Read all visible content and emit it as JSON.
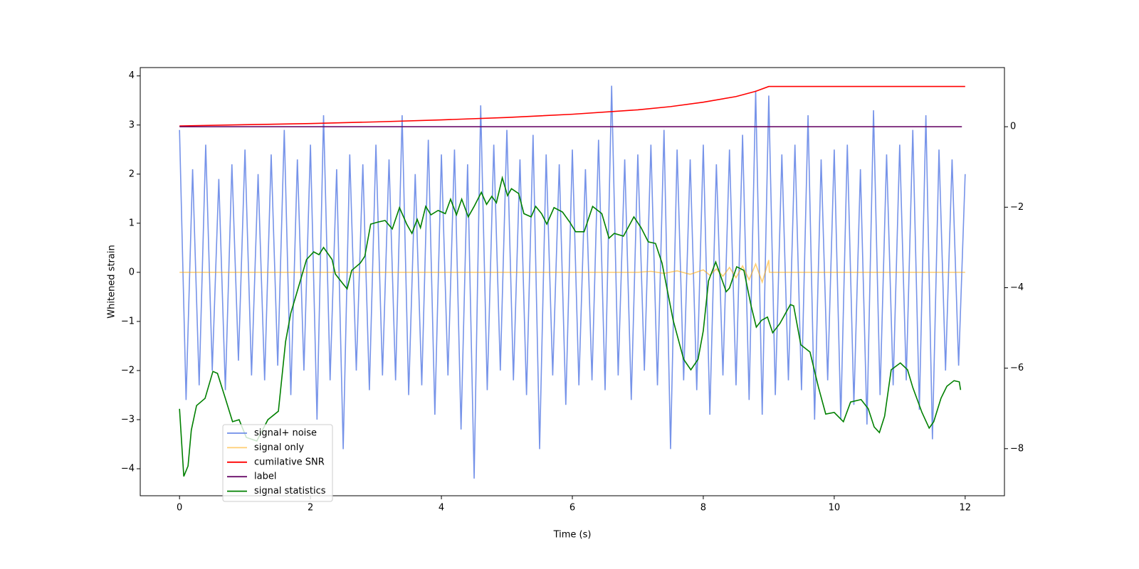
{
  "chart_data": {
    "type": "line",
    "xlabel": "Time (s)",
    "ylabel": "Whitened strain",
    "xlim": [
      -0.6,
      12.6
    ],
    "ylim": [
      -4.55,
      4.17
    ],
    "y2lim": [
      -9.17,
      1.47
    ],
    "xticks": [
      0,
      2,
      4,
      6,
      8,
      10,
      12
    ],
    "yticks": [
      {
        "value": -4,
        "label": "−4"
      },
      {
        "value": -3,
        "label": "−3"
      },
      {
        "value": -2,
        "label": "−2"
      },
      {
        "value": -1,
        "label": "−1"
      },
      0,
      1,
      2,
      3,
      4
    ],
    "y2ticks": [
      {
        "value": -8,
        "label": "−8"
      },
      {
        "value": -6,
        "label": "−6"
      },
      {
        "value": -4,
        "label": "−4"
      },
      {
        "value": -2,
        "label": "−2"
      },
      0
    ],
    "legend": "lower left",
    "series": [
      {
        "name": "signal+ noise",
        "color": "#6f8de8",
        "x": [
          0,
          0.1,
          0.2,
          0.3,
          0.4,
          0.5,
          0.6,
          0.7,
          0.8,
          0.9,
          1,
          1.1,
          1.2,
          1.3,
          1.4,
          1.5,
          1.6,
          1.7,
          1.8,
          1.9,
          2,
          2.1,
          2.2,
          2.3,
          2.4,
          2.5,
          2.6,
          2.7,
          2.8,
          2.9,
          3,
          3.1,
          3.2,
          3.3,
          3.4,
          3.5,
          3.6,
          3.7,
          3.8,
          3.9,
          4,
          4.1,
          4.2,
          4.3,
          4.4,
          4.5,
          4.6,
          4.7,
          4.8,
          4.9,
          5,
          5.1,
          5.2,
          5.3,
          5.4,
          5.5,
          5.6,
          5.7,
          5.8,
          5.9,
          6,
          6.1,
          6.2,
          6.3,
          6.4,
          6.5,
          6.6,
          6.7,
          6.8,
          6.9,
          7,
          7.1,
          7.2,
          7.3,
          7.4,
          7.5,
          7.6,
          7.7,
          7.8,
          7.9,
          8,
          8.1,
          8.2,
          8.3,
          8.4,
          8.5,
          8.6,
          8.7,
          8.8,
          8.9,
          9,
          9.1,
          9.2,
          9.3,
          9.4,
          9.5,
          9.6,
          9.7,
          9.8,
          9.9,
          10,
          10.1,
          10.2,
          10.3,
          10.4,
          10.5,
          10.6,
          10.7,
          10.8,
          10.9,
          11,
          11.1,
          11.2,
          11.3,
          11.4,
          11.5,
          11.6,
          11.7,
          11.8,
          11.9,
          12
        ],
        "values": [
          2.9,
          -2.6,
          2.1,
          -2.3,
          2.6,
          -2.0,
          1.9,
          -2.4,
          2.2,
          -1.8,
          2.5,
          -2.1,
          2.0,
          -2.2,
          2.4,
          -1.9,
          2.9,
          -2.5,
          2.3,
          -2.0,
          2.6,
          -3.0,
          3.2,
          -2.2,
          2.1,
          -3.6,
          2.4,
          -2.0,
          2.2,
          -2.4,
          2.6,
          -2.1,
          2.3,
          -2.2,
          3.2,
          -2.5,
          2.0,
          -2.3,
          2.7,
          -2.9,
          2.4,
          -2.1,
          2.5,
          -3.2,
          2.2,
          -4.2,
          3.4,
          -2.4,
          2.6,
          -2.0,
          2.9,
          -2.2,
          2.3,
          -2.5,
          2.8,
          -3.6,
          2.4,
          -2.1,
          2.2,
          -2.7,
          2.5,
          -2.3,
          2.1,
          -2.2,
          2.7,
          -2.4,
          3.8,
          -2.1,
          2.3,
          -2.6,
          2.4,
          -2.0,
          2.6,
          -2.3,
          2.9,
          -3.6,
          2.5,
          -2.2,
          2.3,
          -2.4,
          2.6,
          -2.9,
          2.2,
          -2.1,
          2.5,
          -2.3,
          2.8,
          -2.6,
          3.7,
          -2.9,
          3.6,
          -2.5,
          2.4,
          -2.2,
          2.6,
          -2.4,
          3.2,
          -3.0,
          2.3,
          -2.2,
          2.5,
          -3.0,
          2.6,
          -2.7,
          2.1,
          -3.1,
          3.3,
          -2.5,
          2.4,
          -2.3,
          2.6,
          -2.2,
          2.9,
          -2.8,
          3.2,
          -3.4,
          2.5,
          -2.0,
          2.3,
          -1.9,
          2.0
        ]
      },
      {
        "name": "signal only",
        "color": "#ffa500",
        "x": [
          0,
          2,
          4,
          6,
          7,
          7.2,
          7.4,
          7.6,
          7.8,
          8,
          8.1,
          8.2,
          8.3,
          8.4,
          8.5,
          8.6,
          8.7,
          8.8,
          8.9,
          9,
          9.01,
          12
        ],
        "values": [
          0,
          0,
          0,
          0,
          0,
          0.02,
          -0.02,
          0.03,
          -0.04,
          0.05,
          -0.06,
          0.07,
          -0.08,
          0.1,
          -0.11,
          0.13,
          -0.15,
          0.17,
          -0.2,
          0.25,
          0,
          0
        ]
      },
      {
        "name": "cumilative SNR",
        "color": "#ff0000",
        "axis": "y2",
        "x": [
          0,
          1,
          2,
          3,
          4,
          5,
          6,
          7,
          7.5,
          8,
          8.5,
          8.8,
          9,
          12
        ],
        "values": [
          0.02,
          0.05,
          0.08,
          0.12,
          0.17,
          0.23,
          0.31,
          0.42,
          0.5,
          0.61,
          0.75,
          0.88,
          1.0,
          1.0
        ]
      },
      {
        "name": "label",
        "color": "#6a0d6a",
        "axis": "y2",
        "x": [
          0,
          11.95
        ],
        "values": [
          0,
          0
        ]
      },
      {
        "name": "signal statistics",
        "color": "#008000",
        "axis": "y2",
        "x": [
          0,
          0.065,
          0.13,
          0.18,
          0.26,
          0.39,
          0.51,
          0.58,
          0.7,
          0.81,
          0.91,
          1.02,
          1.18,
          1.35,
          1.51,
          1.62,
          1.7,
          1.78,
          1.94,
          2.05,
          2.13,
          2.2,
          2.33,
          2.38,
          2.49,
          2.56,
          2.63,
          2.76,
          2.83,
          2.92,
          3.03,
          3.14,
          3.25,
          3.36,
          3.47,
          3.55,
          3.63,
          3.68,
          3.76,
          3.84,
          3.95,
          4.06,
          4.14,
          4.23,
          4.31,
          4.41,
          4.5,
          4.61,
          4.69,
          4.77,
          4.84,
          4.93,
          5.01,
          5.07,
          5.18,
          5.26,
          5.37,
          5.44,
          5.53,
          5.61,
          5.72,
          5.85,
          5.96,
          6.05,
          6.18,
          6.31,
          6.45,
          6.56,
          6.64,
          6.78,
          6.94,
          7.05,
          7.16,
          7.27,
          7.37,
          7.54,
          7.7,
          7.81,
          7.92,
          8.0,
          8.08,
          8.19,
          8.35,
          8.4,
          8.51,
          8.62,
          8.73,
          8.81,
          8.89,
          8.98,
          9.06,
          9.17,
          9.33,
          9.38,
          9.49,
          9.63,
          9.76,
          9.87,
          10.0,
          10.14,
          10.25,
          10.41,
          10.52,
          10.61,
          10.69,
          10.77,
          10.87,
          11.01,
          11.12,
          11.2,
          11.34,
          11.45,
          11.52,
          11.63,
          11.72,
          11.83,
          11.91,
          11.93
        ],
        "values": [
          -7.01,
          -8.69,
          -8.43,
          -7.54,
          -6.93,
          -6.75,
          -6.08,
          -6.13,
          -6.75,
          -7.33,
          -7.28,
          -7.72,
          -7.81,
          -7.28,
          -7.07,
          -5.34,
          -4.63,
          -4.19,
          -3.3,
          -3.11,
          -3.18,
          -3.0,
          -3.3,
          -3.66,
          -3.89,
          -4.03,
          -3.57,
          -3.39,
          -3.22,
          -2.42,
          -2.37,
          -2.33,
          -2.54,
          -2.01,
          -2.42,
          -2.65,
          -2.3,
          -2.51,
          -1.98,
          -2.19,
          -2.08,
          -2.16,
          -1.8,
          -2.19,
          -1.8,
          -2.24,
          -1.98,
          -1.63,
          -1.93,
          -1.73,
          -1.89,
          -1.27,
          -1.71,
          -1.54,
          -1.66,
          -2.16,
          -2.24,
          -1.98,
          -2.16,
          -2.42,
          -2.01,
          -2.12,
          -2.37,
          -2.61,
          -2.61,
          -1.98,
          -2.16,
          -2.77,
          -2.65,
          -2.72,
          -2.24,
          -2.51,
          -2.86,
          -2.9,
          -3.39,
          -4.81,
          -5.78,
          -6.04,
          -5.78,
          -5.07,
          -3.83,
          -3.36,
          -4.1,
          -4.01,
          -3.48,
          -3.57,
          -4.45,
          -4.98,
          -4.81,
          -4.73,
          -5.12,
          -4.89,
          -4.42,
          -4.45,
          -5.42,
          -5.6,
          -6.48,
          -7.14,
          -7.1,
          -7.33,
          -6.84,
          -6.78,
          -7.01,
          -7.46,
          -7.6,
          -7.19,
          -6.04,
          -5.87,
          -6.04,
          -6.48,
          -7.1,
          -7.49,
          -7.33,
          -6.75,
          -6.45,
          -6.31,
          -6.34,
          -6.54
        ]
      }
    ]
  }
}
